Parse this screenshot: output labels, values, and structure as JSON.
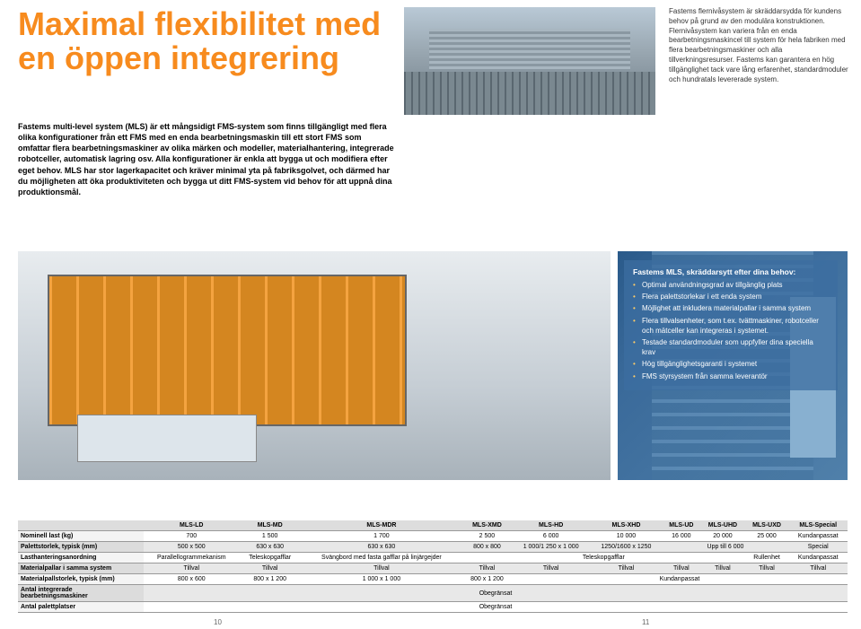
{
  "headline": "Maximal flexibilitet med en öppen integrering",
  "intro": "Fastems multi-level system (MLS) är ett mångsidigt FMS-system som finns tillgängligt med flera olika konfigurationer från ett FMS med en enda bearbetningsmaskin till ett stort FMS som omfattar flera bearbetningsmaskiner av olika märken och modeller, materialhantering, integrerade robotceller, automatisk lagring osv. Alla konfigurationer är enkla att bygga ut och modifiera efter eget behov. MLS har stor lagerkapacitet och kräver minimal yta på fabriksgolvet, och därmed har du möjligheten att öka produktiviteten och bygga ut ditt FMS-system vid behov för att uppnå dina produktionsmål.",
  "side": "Fastems flernivåsystem är skräddarsydda för kundens behov på grund av den modulära konstruktionen. Flernivåsystem kan variera från en enda bearbetningsmaskincel till system för hela fabriken med flera bearbetningsmaskiner och alla tillverkningsresurser. Fastems kan garantera en hög tillgänglighet tack vare lång erfarenhet, standardmoduler och hundratals levererade system.",
  "infobox": {
    "title": "Fastems MLS, skräddarsytt efter dina behov:",
    "items": [
      "Optimal användningsgrad av tillgänglig plats",
      "Flera palettstorlekar i ett enda system",
      "Möjlighet att inkludera materialpallar i samma system",
      "Flera tillvalsenheter, som t.ex. tvättmaskiner, robotceller och mätceller kan integreras i systemet.",
      "Testade standardmoduler som uppfyller dina speciella krav",
      "Hög tillgänglighetsgaranti i systemet",
      "FMS styrsystem från samma leverantör"
    ]
  },
  "table": {
    "headers": [
      "",
      "MLS-LD",
      "MLS-MD",
      "MLS-MDR",
      "MLS-XMD",
      "MLS-HD",
      "MLS-XHD",
      "MLS-UD",
      "MLS-UHD",
      "MLS-UXD",
      "MLS-Special"
    ],
    "rows": [
      {
        "label": "Nominell last (kg)",
        "cells": [
          "700",
          "1 500",
          "1 700",
          "2 500",
          "6 000",
          "10 000",
          "16 000",
          "20 000",
          "25 000",
          "Kundanpassat"
        ]
      },
      {
        "label": "Palettstorlek, typisk (mm)",
        "cells": [
          "500 x 500",
          "630 x 630",
          "630 x 630",
          "800 x 800",
          "1 000/1 250 x 1 000",
          "1250/1600 x 1250",
          {
            "span": 3,
            "text": "Upp till 6 000"
          },
          "Special"
        ]
      },
      {
        "label": "Lasthanteringsanordning",
        "cells": [
          "Parallellogrammekanism",
          "Teleskopgafflar",
          "Svängbord med fasta gafflar på linjärgejder",
          {
            "span": 5,
            "text": "Teleskopgafflar"
          },
          "Rullenhet",
          "Kundanpassat"
        ]
      },
      {
        "label": "Materialpallar i samma system",
        "cells": [
          "Tillval",
          "Tillval",
          "Tillval",
          "Tillval",
          "Tillval",
          "Tillval",
          "Tillval",
          "Tillval",
          "Tillval",
          "Tillval"
        ]
      },
      {
        "label": "Materialpallstorlek, typisk (mm)",
        "cells": [
          "800 x 600",
          "800 x 1 200",
          "1 000 x 1 000",
          "800 x 1 200",
          {
            "span": 6,
            "text": "Kundanpassat"
          }
        ]
      },
      {
        "label": "Antal integrerade bearbetningsmaskiner",
        "cells": [
          {
            "span": 10,
            "text": "Obegränsat"
          }
        ]
      },
      {
        "label": "Antal palettplatser",
        "cells": [
          {
            "span": 10,
            "text": "Obegränsat"
          }
        ]
      }
    ]
  },
  "pagenum_left": "10",
  "pagenum_right": "11"
}
